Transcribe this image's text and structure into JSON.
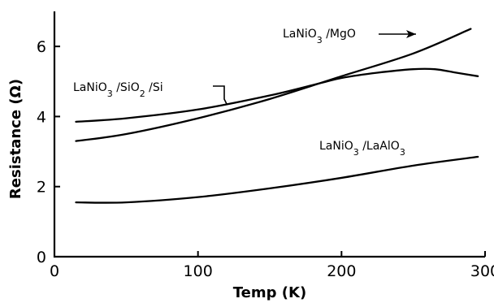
{
  "chart_data": {
    "type": "line",
    "xlabel": "Temp (K)",
    "ylabel": "Resistance (Ω)",
    "xlim": [
      0,
      300
    ],
    "ylim": [
      0,
      7
    ],
    "xticks": [
      0,
      100,
      200,
      300
    ],
    "yticks": [
      0,
      2,
      4,
      6
    ],
    "grid": false,
    "series": [
      {
        "label": "LaNiO3 /SiO2 /Si",
        "x": [
          15,
          50,
          100,
          150,
          185,
          200,
          225,
          250,
          265,
          280,
          295
        ],
        "y": [
          3.85,
          3.95,
          4.2,
          4.6,
          4.95,
          5.1,
          5.25,
          5.35,
          5.35,
          5.25,
          5.15
        ]
      },
      {
        "label": "LaNiO3 /MgO",
        "x": [
          15,
          50,
          100,
          150,
          200,
          250,
          290
        ],
        "y": [
          3.3,
          3.5,
          3.95,
          4.5,
          5.15,
          5.8,
          6.5
        ]
      },
      {
        "label": "LaNiO3 /LaAlO3",
        "x": [
          15,
          50,
          100,
          150,
          200,
          250,
          295
        ],
        "y": [
          1.55,
          1.55,
          1.7,
          1.95,
          2.25,
          2.6,
          2.85
        ]
      }
    ],
    "annotations": [
      {
        "series": 1,
        "base": "LaNiO",
        "parts": [
          [
            "LaNiO",
            ""
          ],
          [
            "3",
            "sub"
          ],
          [
            " /MgO",
            ""
          ]
        ]
      },
      {
        "series": 0,
        "base": "LaNiO",
        "parts": [
          [
            "LaNiO",
            ""
          ],
          [
            "3",
            "sub"
          ],
          [
            " /SiO",
            ""
          ],
          [
            "2",
            "sub"
          ],
          [
            " /Si",
            ""
          ]
        ]
      },
      {
        "series": 2,
        "base": "LaNiO",
        "parts": [
          [
            "LaNiO",
            ""
          ],
          [
            "3",
            "sub"
          ],
          [
            " /LaAlO",
            ""
          ],
          [
            "3",
            "sub"
          ]
        ]
      }
    ]
  }
}
